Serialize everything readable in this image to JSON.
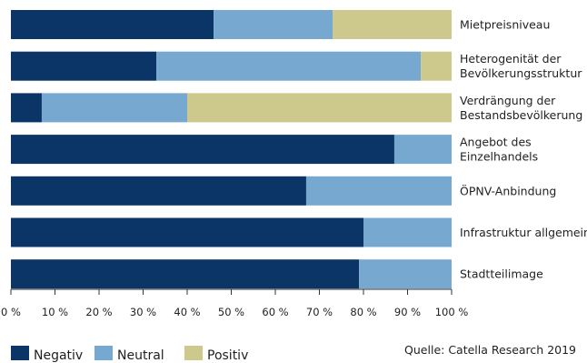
{
  "chart_data": {
    "type": "bar",
    "orientation": "horizontal",
    "stacked": true,
    "categories": [
      [
        "Mietpreisniveau"
      ],
      [
        "Heterogenität der",
        "Bevölkerungsstruktur"
      ],
      [
        "Verdrängung der",
        "Bestandsbevölkerung"
      ],
      [
        "Angebot des",
        "Einzelhandels"
      ],
      [
        "ÖPNV-Anbindung"
      ],
      [
        "Infrastruktur allgemein"
      ],
      [
        "Stadtteilimage"
      ]
    ],
    "series": [
      {
        "name": "Negativ",
        "color": "#0b3566",
        "values": [
          46,
          33,
          7,
          87,
          67,
          80,
          79
        ]
      },
      {
        "name": "Neutral",
        "color": "#77a8d0",
        "values": [
          27,
          60,
          33,
          13,
          33,
          20,
          21
        ]
      },
      {
        "name": "Positiv",
        "color": "#cdc98c",
        "values": [
          27,
          7,
          60,
          0,
          0,
          0,
          0
        ]
      }
    ],
    "x_ticks": [
      "0 %",
      "10 %",
      "20 %",
      "30 %",
      "40 %",
      "50 %",
      "60 %",
      "70 %",
      "80 %",
      "90 %",
      "100 %"
    ],
    "xlim": [
      0,
      100
    ],
    "grid": false,
    "legend_position": "bottom-left"
  },
  "source": "Quelle: Catella Research 2019"
}
